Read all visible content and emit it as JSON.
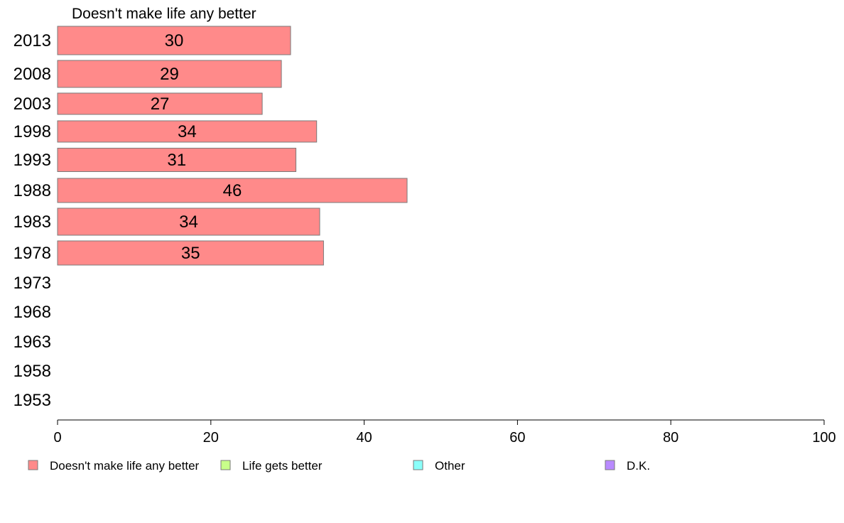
{
  "chart_data": {
    "type": "bar",
    "orientation": "horizontal",
    "title": "Doesn't make life any better",
    "categories": [
      "2013",
      "2008",
      "2003",
      "1998",
      "1993",
      "1988",
      "1983",
      "1978",
      "1973",
      "1968",
      "1963",
      "1958",
      "1953"
    ],
    "series": [
      {
        "name": "Doesn't make life any better",
        "color": "#ff8a8a",
        "values": [
          30.4,
          29.2,
          26.7,
          33.8,
          31.1,
          45.6,
          34.2,
          34.7,
          null,
          null,
          null,
          null,
          null
        ],
        "labels": [
          "30",
          "29",
          "27",
          "34",
          "31",
          "46",
          "34",
          "35",
          "",
          "",
          "",
          "",
          ""
        ]
      }
    ],
    "xlim": [
      0,
      100
    ],
    "xticks": [
      "0",
      "20",
      "40",
      "60",
      "80",
      "100"
    ],
    "grid": false,
    "legend": {
      "placement": "bottom",
      "entries": [
        {
          "label": "Doesn't make life any better",
          "color": "#ff8a8a"
        },
        {
          "label": "Life gets better",
          "color": "#c8ff8a"
        },
        {
          "label": "Other",
          "color": "#8afffa"
        },
        {
          "label": "D.K.",
          "color": "#b98aff"
        }
      ]
    }
  }
}
